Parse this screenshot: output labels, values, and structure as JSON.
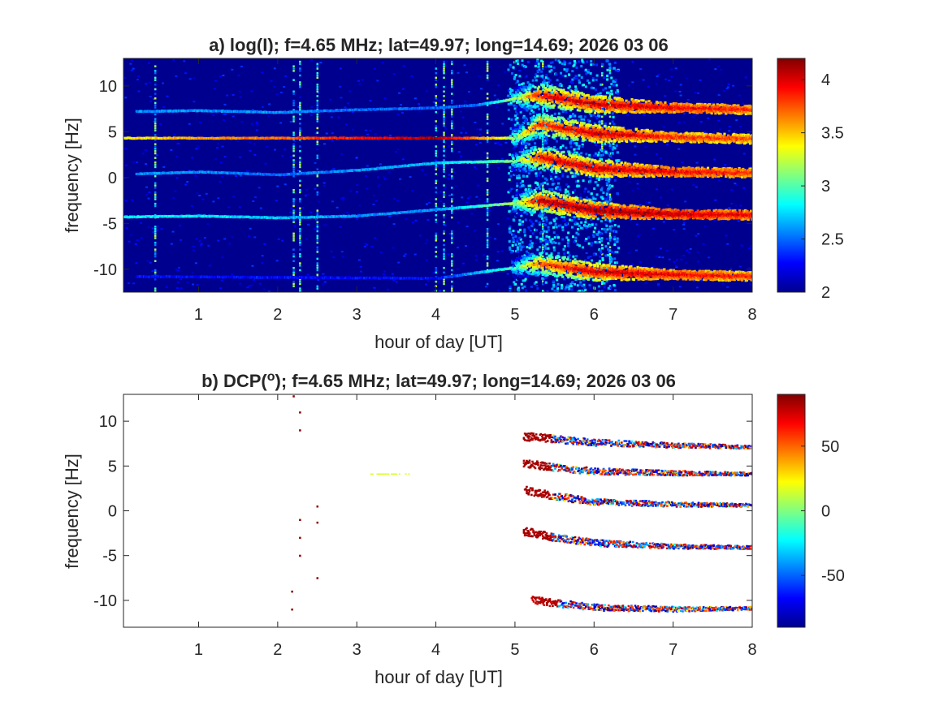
{
  "chart_data": [
    {
      "type": "heatmap",
      "title_prefix": "a) log(I)",
      "title_suffix": "; f=4.65 MHz;  lat=49.97; long=14.69; 2026 03 06",
      "xlabel": "hour of day [UT]",
      "ylabel": "frequency [Hz]",
      "xlim": [
        0.05,
        8
      ],
      "ylim": [
        -12.5,
        13
      ],
      "xticks": [
        1,
        2,
        3,
        4,
        5,
        6,
        7,
        8
      ],
      "yticks": [
        10,
        5,
        0,
        -5,
        -10
      ],
      "colorbar": {
        "colormap": "jet",
        "range": [
          2,
          4.2
        ],
        "ticks": [
          "4",
          "3.5",
          "3",
          "2.5",
          "2"
        ],
        "tick_values": [
          4,
          3.5,
          3,
          2.5,
          2
        ]
      },
      "background": "low intensity (~2.1) everywhere",
      "traces": [
        {
          "name": "trace-7.5Hz",
          "x": [
            0.2,
            1.0,
            2.0,
            3.0,
            4.0,
            4.5,
            5.0,
            5.3,
            6.0,
            7.0,
            8.0
          ],
          "y": [
            7.2,
            7.3,
            7.1,
            7.4,
            7.6,
            7.9,
            8.6,
            9.0,
            8.0,
            7.6,
            7.4
          ],
          "intensity": [
            2.6,
            2.6,
            2.6,
            2.5,
            2.5,
            2.5,
            3.2,
            4.0,
            4.1,
            4.0,
            3.9
          ]
        },
        {
          "name": "trace-4.3Hz",
          "x": [
            0.05,
            1.0,
            2.0,
            3.0,
            4.0,
            5.0,
            5.3,
            6.0,
            7.0,
            8.0
          ],
          "y": [
            4.3,
            4.3,
            4.3,
            4.3,
            4.3,
            4.3,
            5.8,
            4.8,
            4.4,
            4.2
          ],
          "intensity": [
            3.4,
            3.6,
            3.7,
            3.9,
            4.1,
            3.2,
            3.9,
            4.1,
            3.9,
            3.8
          ]
        },
        {
          "name": "trace-0.5Hz",
          "x": [
            0.2,
            1.0,
            2.0,
            3.0,
            4.0,
            5.0,
            5.3,
            6.0,
            7.0,
            8.0
          ],
          "y": [
            0.4,
            0.6,
            0.3,
            0.8,
            1.6,
            1.8,
            2.2,
            1.0,
            0.6,
            0.5
          ],
          "intensity": [
            2.6,
            2.6,
            2.5,
            2.6,
            2.7,
            3.1,
            4.0,
            4.1,
            4.0,
            3.9
          ]
        },
        {
          "name": "trace-minus4.3Hz",
          "x": [
            0.05,
            1.0,
            2.0,
            3.0,
            4.0,
            5.0,
            5.3,
            6.0,
            7.0,
            8.0
          ],
          "y": [
            -4.3,
            -4.2,
            -4.4,
            -4.2,
            -3.5,
            -2.8,
            -2.5,
            -3.6,
            -4.0,
            -4.1
          ],
          "intensity": [
            2.8,
            2.8,
            2.7,
            2.6,
            2.6,
            3.2,
            4.1,
            4.2,
            4.1,
            4.0
          ]
        },
        {
          "name": "trace-minus10.5Hz",
          "x": [
            0.2,
            2.0,
            4.0,
            5.0,
            5.3,
            6.0,
            7.0,
            8.0
          ],
          "y": [
            -10.8,
            -10.9,
            -11.0,
            -9.8,
            -9.4,
            -10.3,
            -10.6,
            -10.8
          ],
          "intensity": [
            2.3,
            2.3,
            2.3,
            3.0,
            3.8,
            4.1,
            4.0,
            3.9
          ]
        }
      ],
      "vertical_streaks_hours": [
        0.45,
        2.2,
        2.28,
        2.5,
        4.0,
        4.1,
        4.2,
        4.65,
        5.35,
        6.1,
        6.2
      ],
      "noise_region_hours": [
        4.9,
        6.3
      ]
    },
    {
      "type": "heatmap",
      "title_prefix": "b) DCP(",
      "title_sup": "o",
      "title_suffix": "); f=4.65 MHz;  lat=49.97; long=14.69; 2026 03 06",
      "xlabel": "hour of day [UT]",
      "ylabel": "frequency [Hz]",
      "xlim": [
        0.05,
        8
      ],
      "ylim": [
        -13,
        13
      ],
      "xticks": [
        1,
        2,
        3,
        4,
        5,
        6,
        7,
        8
      ],
      "yticks": [
        10,
        5,
        0,
        -5,
        -10
      ],
      "colorbar": {
        "colormap": "jet",
        "range": [
          -90,
          90
        ],
        "ticks": [
          "50",
          "0",
          "-50"
        ],
        "tick_values": [
          50,
          0,
          -50
        ]
      },
      "background": "blank (white)",
      "traces": [
        {
          "name": "dcp-trace-7.5Hz",
          "x": [
            5.1,
            5.5,
            6.0,
            7.0,
            8.0
          ],
          "y": [
            8.3,
            8.0,
            7.6,
            7.3,
            7.1
          ],
          "dcp_start": 88,
          "dcp_end": -80
        },
        {
          "name": "dcp-trace-4.3Hz",
          "x": [
            5.1,
            5.5,
            6.0,
            7.0,
            8.0
          ],
          "y": [
            5.3,
            4.8,
            4.4,
            4.2,
            4.1
          ],
          "dcp_start": 88,
          "dcp_end": -80
        },
        {
          "name": "dcp-trace-0.5Hz",
          "x": [
            5.1,
            5.5,
            6.0,
            7.0,
            8.0
          ],
          "y": [
            2.3,
            1.6,
            1.0,
            0.7,
            0.6
          ],
          "dcp_start": 88,
          "dcp_end": -80
        },
        {
          "name": "dcp-trace-minus4Hz",
          "x": [
            5.1,
            5.5,
            6.0,
            7.0,
            8.0
          ],
          "y": [
            -2.3,
            -3.0,
            -3.6,
            -4.0,
            -4.1
          ],
          "dcp_start": 88,
          "dcp_end": -80
        },
        {
          "name": "dcp-trace-minus10.5Hz",
          "x": [
            5.2,
            5.5,
            6.0,
            7.0,
            8.0
          ],
          "y": [
            -10.0,
            -10.3,
            -10.8,
            -11.0,
            -10.9
          ],
          "dcp_start": 85,
          "dcp_end": -80
        }
      ],
      "isolated_points": [
        {
          "x": 2.28,
          "y": 11.0,
          "dcp": 88
        },
        {
          "x": 2.28,
          "y": 9.0,
          "dcp": 88
        },
        {
          "x": 2.28,
          "y": -1.0,
          "dcp": 88
        },
        {
          "x": 2.28,
          "y": -3.0,
          "dcp": 88
        },
        {
          "x": 2.28,
          "y": -5.0,
          "dcp": 88
        },
        {
          "x": 2.5,
          "y": 0.5,
          "dcp": 88
        },
        {
          "x": 2.5,
          "y": -1.3,
          "dcp": 88
        },
        {
          "x": 2.5,
          "y": -7.5,
          "dcp": 88
        },
        {
          "x": 2.18,
          "y": -9.0,
          "dcp": 88
        },
        {
          "x": 2.18,
          "y": -11.0,
          "dcp": 88
        },
        {
          "x": 2.2,
          "y": 12.8,
          "dcp": 88
        }
      ],
      "segments": [
        {
          "x": [
            3.17,
            3.67
          ],
          "y": 4.1,
          "dcp": 15
        }
      ]
    }
  ]
}
